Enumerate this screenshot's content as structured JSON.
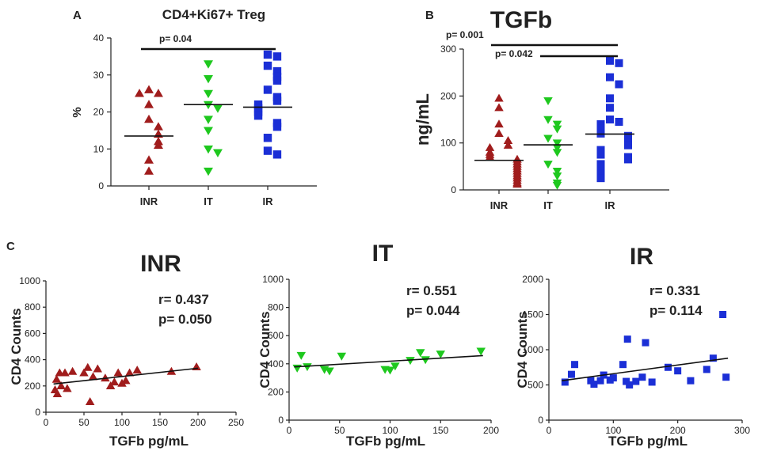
{
  "colors": {
    "INR": "#a01c1c",
    "IT": "#1ec81e",
    "IR": "#1b2fd6"
  },
  "panel_labels": {
    "a": "A",
    "b": "B",
    "c": "C"
  },
  "chart_data": [
    {
      "id": "A",
      "type": "scatter",
      "title": "CD4+Ki67+ Treg",
      "ylabel": "%",
      "xlabel": "",
      "ylim": [
        0,
        40
      ],
      "yticks": [
        0,
        10,
        20,
        30,
        40
      ],
      "categories": [
        "INR",
        "IT",
        "IR"
      ],
      "series": [
        {
          "name": "INR",
          "marker": "triangle-up",
          "median": 13.5,
          "values": [
            26,
            25,
            25,
            22,
            18,
            16,
            14,
            12,
            11,
            7,
            4
          ]
        },
        {
          "name": "IT",
          "marker": "triangle-down",
          "median": 22,
          "values": [
            33,
            29,
            25,
            22,
            21,
            18,
            15,
            10,
            9,
            4
          ]
        },
        {
          "name": "IR",
          "marker": "square",
          "median": 21.3,
          "values": [
            35.5,
            35,
            32.5,
            31,
            29.5,
            28.5,
            26,
            24,
            23,
            22,
            21,
            20,
            19,
            17,
            16,
            13,
            9.5,
            8.5
          ]
        }
      ],
      "comparisons": [
        {
          "from": "INR",
          "to": "IR",
          "label": "p= 0.04"
        }
      ]
    },
    {
      "id": "B",
      "type": "scatter",
      "title": "TGFb",
      "ylabel": "ng/mL",
      "xlabel": "",
      "ylim": [
        0,
        300
      ],
      "yticks": [
        0,
        100,
        200,
        300
      ],
      "categories": [
        "INR",
        "IT",
        "IR"
      ],
      "series": [
        {
          "name": "INR",
          "marker": "triangle-up",
          "median": 63,
          "values": [
            195,
            175,
            140,
            120,
            105,
            95,
            90,
            80,
            75,
            70,
            65,
            60,
            55,
            50,
            45,
            40,
            35,
            30,
            25,
            20,
            15,
            12
          ]
        },
        {
          "name": "IT",
          "marker": "triangle-down",
          "median": 96,
          "values": [
            190,
            150,
            140,
            130,
            110,
            100,
            90,
            80,
            55,
            40,
            30,
            15,
            10
          ]
        },
        {
          "name": "IR",
          "marker": "square",
          "median": 119,
          "values": [
            275,
            270,
            240,
            225,
            195,
            175,
            150,
            145,
            140,
            130,
            125,
            120,
            115,
            110,
            105,
            100,
            95,
            85,
            80,
            75,
            70,
            65,
            55,
            50,
            40,
            35,
            25
          ]
        }
      ],
      "comparisons": [
        {
          "from": "INR",
          "to": "IR",
          "label": "p= 0.001"
        },
        {
          "from": "IT",
          "to": "IR",
          "label": "p= 0.042"
        }
      ]
    },
    {
      "id": "C-INR",
      "type": "scatter",
      "title": "INR",
      "xlabel": "TGFb pg/mL",
      "ylabel": "CD4 Counts",
      "xlim": [
        0,
        250
      ],
      "ylim": [
        0,
        1000
      ],
      "xticks": [
        0,
        50,
        100,
        150,
        200,
        250
      ],
      "yticks": [
        0,
        200,
        400,
        600,
        800,
        1000
      ],
      "series_name": "INR",
      "marker": "triangle-up",
      "annotation": [
        "r= 0.437",
        "p= 0.050"
      ],
      "fit": {
        "x": [
          10,
          200
        ],
        "y": [
          215,
          335
        ]
      },
      "points": [
        [
          12,
          170
        ],
        [
          14,
          250
        ],
        [
          15,
          140
        ],
        [
          18,
          300
        ],
        [
          20,
          200
        ],
        [
          25,
          300
        ],
        [
          28,
          180
        ],
        [
          35,
          310
        ],
        [
          50,
          300
        ],
        [
          55,
          340
        ],
        [
          58,
          80
        ],
        [
          62,
          270
        ],
        [
          68,
          330
        ],
        [
          78,
          260
        ],
        [
          85,
          200
        ],
        [
          90,
          230
        ],
        [
          95,
          300
        ],
        [
          100,
          220
        ],
        [
          105,
          240
        ],
        [
          110,
          300
        ],
        [
          120,
          320
        ],
        [
          165,
          310
        ],
        [
          198,
          345
        ]
      ]
    },
    {
      "id": "C-IT",
      "type": "scatter",
      "title": "IT",
      "xlabel": "TGFb pg/mL",
      "ylabel": "CD4 Counts",
      "xlim": [
        0,
        200
      ],
      "ylim": [
        0,
        1000
      ],
      "xticks": [
        0,
        50,
        100,
        150,
        200
      ],
      "yticks": [
        0,
        200,
        400,
        600,
        800,
        1000
      ],
      "series_name": "IT",
      "marker": "triangle-down",
      "annotation": [
        "r= 0.551",
        "p= 0.044"
      ],
      "fit": {
        "x": [
          5,
          192
        ],
        "y": [
          378,
          458
        ]
      },
      "points": [
        [
          8,
          370
        ],
        [
          12,
          460
        ],
        [
          18,
          380
        ],
        [
          35,
          360
        ],
        [
          40,
          350
        ],
        [
          52,
          455
        ],
        [
          95,
          360
        ],
        [
          100,
          355
        ],
        [
          105,
          385
        ],
        [
          120,
          425
        ],
        [
          130,
          480
        ],
        [
          135,
          430
        ],
        [
          150,
          470
        ],
        [
          190,
          490
        ]
      ]
    },
    {
      "id": "C-IR",
      "type": "scatter",
      "title": "IR",
      "xlabel": "TGFb pg/mL",
      "ylabel": "CD4 Counts",
      "xlim": [
        0,
        300
      ],
      "ylim": [
        0,
        2000
      ],
      "xticks": [
        0,
        100,
        200,
        300
      ],
      "yticks": [
        0,
        500,
        1000,
        1500,
        2000
      ],
      "series_name": "IR",
      "marker": "square",
      "annotation": [
        "r= 0.331",
        "p= 0.114"
      ],
      "fit": {
        "x": [
          20,
          278
        ],
        "y": [
          560,
          880
        ]
      },
      "points": [
        [
          25,
          540
        ],
        [
          35,
          650
        ],
        [
          40,
          790
        ],
        [
          65,
          560
        ],
        [
          70,
          510
        ],
        [
          80,
          560
        ],
        [
          85,
          640
        ],
        [
          95,
          570
        ],
        [
          100,
          600
        ],
        [
          115,
          790
        ],
        [
          120,
          550
        ],
        [
          122,
          1150
        ],
        [
          125,
          500
        ],
        [
          135,
          550
        ],
        [
          145,
          610
        ],
        [
          150,
          1100
        ],
        [
          160,
          540
        ],
        [
          185,
          750
        ],
        [
          200,
          700
        ],
        [
          220,
          560
        ],
        [
          245,
          720
        ],
        [
          255,
          880
        ],
        [
          270,
          1500
        ],
        [
          275,
          610
        ]
      ]
    }
  ]
}
